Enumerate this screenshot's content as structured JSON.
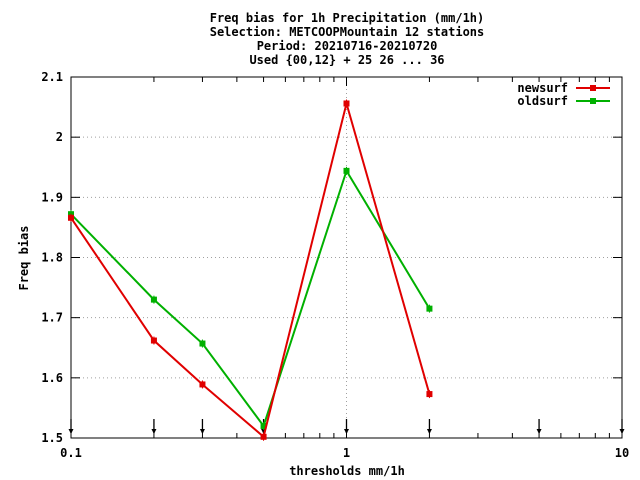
{
  "chart_data": {
    "type": "line",
    "title": [
      "Freq bias  for 1h Precipitation (mm/1h)",
      "Selection: METCOOPMountain     12 stations",
      "Period: 20210716-20210720",
      "Used {00,12} + 25 26 ... 36"
    ],
    "xlabel": "thresholds mm/1h",
    "ylabel": "Freq bias",
    "xscale": "log",
    "xlim": [
      0.1,
      10
    ],
    "ylim": [
      1.5,
      2.1
    ],
    "x_ticks": [
      0.1,
      1,
      10
    ],
    "x_tick_labels": [
      "0.1",
      "1",
      "10"
    ],
    "y_ticks": [
      1.5,
      1.6,
      1.7,
      1.8,
      1.9,
      2.0,
      2.1
    ],
    "y_tick_labels": [
      "1.5",
      "1.6",
      "1.7",
      "1.8",
      "1.9",
      "2",
      "2.1"
    ],
    "grid": true,
    "legend_position": "top-right",
    "threshold_markers": [
      0.1,
      0.2,
      0.3,
      0.5,
      1,
      2,
      5,
      10
    ],
    "series": [
      {
        "name": "newsurf",
        "color": "#e00000",
        "x": [
          0.1,
          0.2,
          0.3,
          0.5,
          1,
          2
        ],
        "y": [
          1.866,
          1.662,
          1.589,
          1.502,
          2.056,
          1.573
        ]
      },
      {
        "name": "oldsurf",
        "color": "#00b000",
        "x": [
          0.1,
          0.2,
          0.3,
          0.5,
          1,
          2
        ],
        "y": [
          1.872,
          1.73,
          1.657,
          1.52,
          1.944,
          1.715
        ]
      }
    ]
  }
}
